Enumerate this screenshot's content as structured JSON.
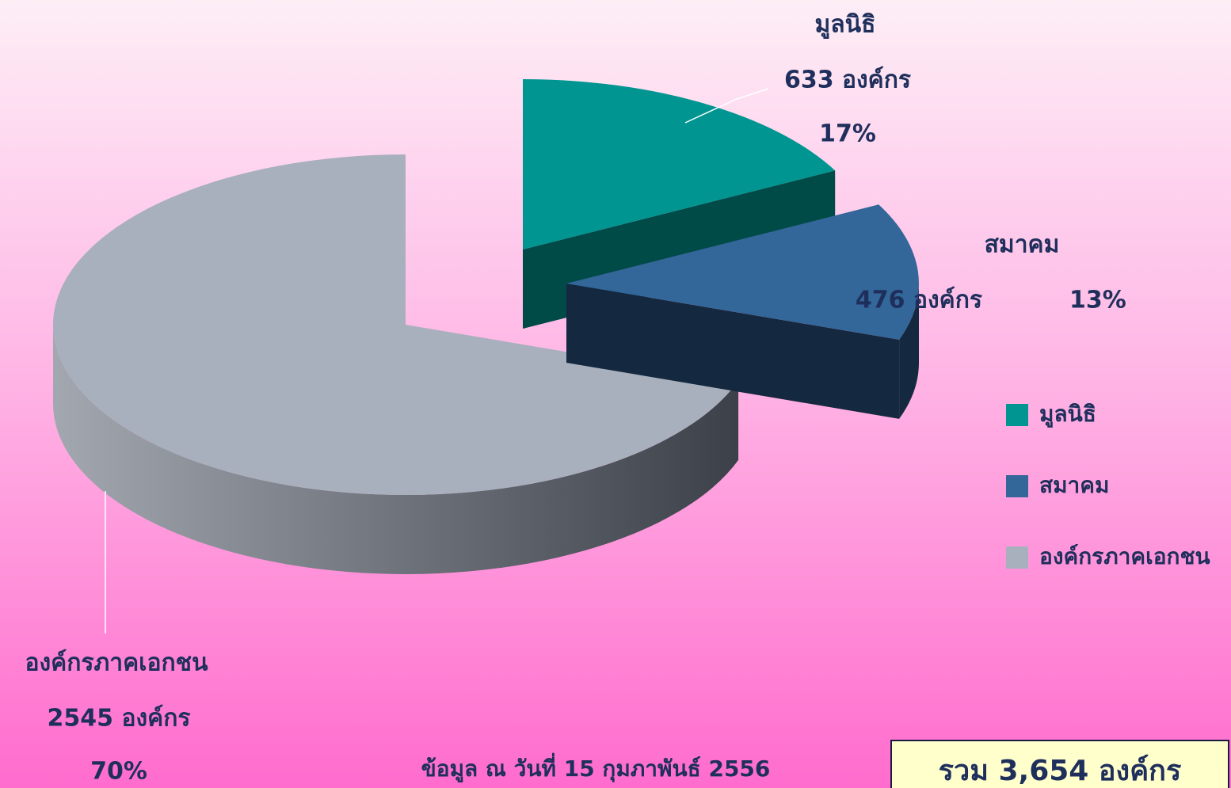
{
  "chart_data": {
    "type": "pie3d",
    "categories": [
      "มูลนิธิ",
      "สมาคม",
      "องค์กรภาคเอกชน"
    ],
    "values": [
      633,
      476,
      2545
    ],
    "value_labels": [
      "633 องค์กร",
      "476 องค์กร",
      "2545 องค์กร"
    ],
    "percent_labels": [
      "17%",
      "13%",
      "70%"
    ],
    "colors": [
      "#009590",
      "#336699",
      "#a9b0bd"
    ],
    "legend": "right",
    "note": "ข้อมูล ณ วันที่ 15 กุมภาพันธ์  2556",
    "total_label": "รวม 3,654 องค์กร"
  }
}
